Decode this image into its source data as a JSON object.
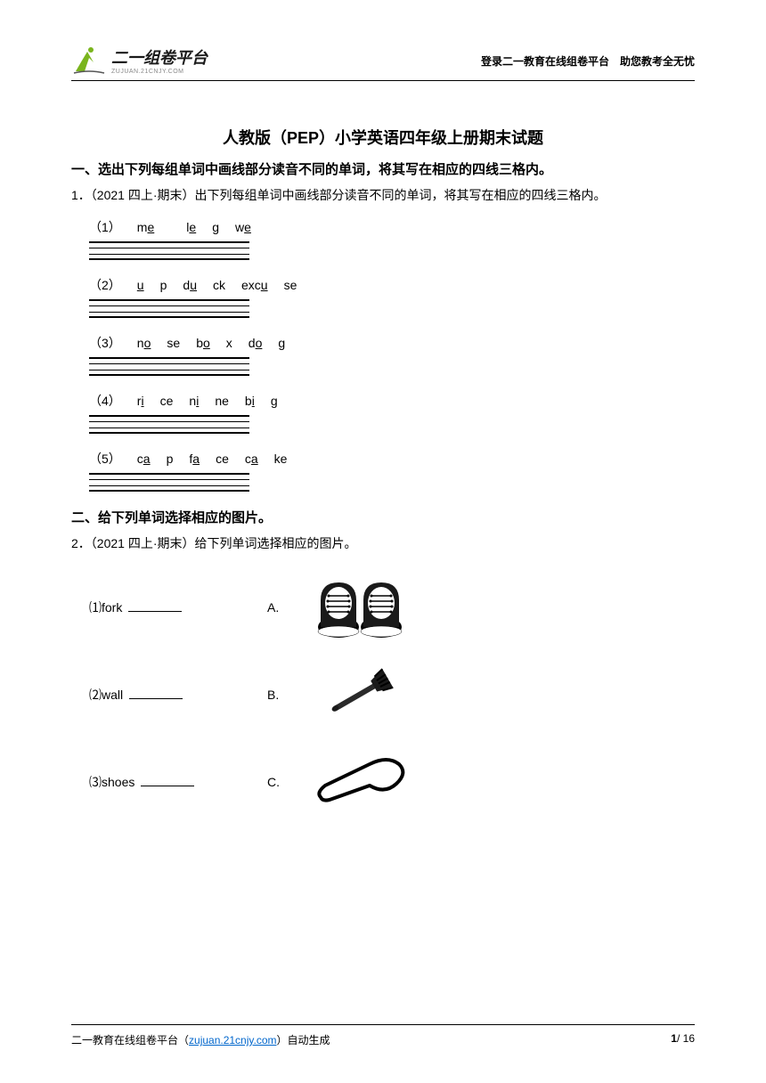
{
  "header": {
    "logo_text": "二一组卷平台",
    "logo_subtitle": "ZUJUAN.21CNJY.COM",
    "right_text": "登录二一教育在线组卷平台　助您教考全无忧"
  },
  "title": "人教版（PEP）小学英语四年级上册期末试题",
  "section1": {
    "header": "一、选出下列每组单词中画线部分读音不同的单词，将其写在相应的四线三格内。",
    "question_prefix": "1．（2021 四上·期末）出下列每组单词中画线部分读音不同的单词，将其写在相应的四线三格内。",
    "items": [
      {
        "num": "（1）",
        "words": [
          {
            "pre": "m",
            "u": "e",
            "post": ""
          },
          {
            "pre": "l",
            "u": "e",
            "post": "g"
          },
          {
            "pre": "w",
            "u": "e",
            "post": ""
          }
        ]
      },
      {
        "num": "（2）",
        "words": [
          {
            "pre": "",
            "u": "u",
            "post": "p"
          },
          {
            "pre": "d",
            "u": "u",
            "post": "ck"
          },
          {
            "pre": "exc",
            "u": "u",
            "post": "se"
          }
        ]
      },
      {
        "num": "（3）",
        "words": [
          {
            "pre": "n",
            "u": "o",
            "post": "se"
          },
          {
            "pre": "b",
            "u": "o",
            "post": "x"
          },
          {
            "pre": "d",
            "u": "o",
            "post": "g"
          }
        ]
      },
      {
        "num": "（4）",
        "words": [
          {
            "pre": "r",
            "u": "i",
            "post": "ce"
          },
          {
            "pre": "n",
            "u": "i",
            "post": "ne"
          },
          {
            "pre": "b",
            "u": "i",
            "post": "g"
          }
        ]
      },
      {
        "num": "（5）",
        "words": [
          {
            "pre": "c",
            "u": "a",
            "post": "p"
          },
          {
            "pre": "f",
            "u": "a",
            "post": "ce"
          },
          {
            "pre": "c",
            "u": "a",
            "post": "ke"
          }
        ]
      }
    ]
  },
  "section2": {
    "header": "二、给下列单词选择相应的图片。",
    "question_prefix": "2．（2021 四上·期末）给下列单词选择相应的图片。",
    "items": [
      {
        "num": "⑴",
        "word": "fork",
        "letter": "A.",
        "image": "shoes"
      },
      {
        "num": "⑵",
        "word": "wall",
        "letter": "B.",
        "image": "fork"
      },
      {
        "num": "⑶",
        "word": "shoes",
        "letter": "C.",
        "image": "spoon"
      }
    ]
  },
  "footer": {
    "left_prefix": "二一教育在线组卷平台（",
    "link": "zujuan.21cnjy.com",
    "left_suffix": "）自动生成",
    "page": "1",
    "total": "/ 16"
  },
  "colors": {
    "text": "#000000",
    "link": "#0066cc",
    "logo_green": "#7ab51d"
  }
}
